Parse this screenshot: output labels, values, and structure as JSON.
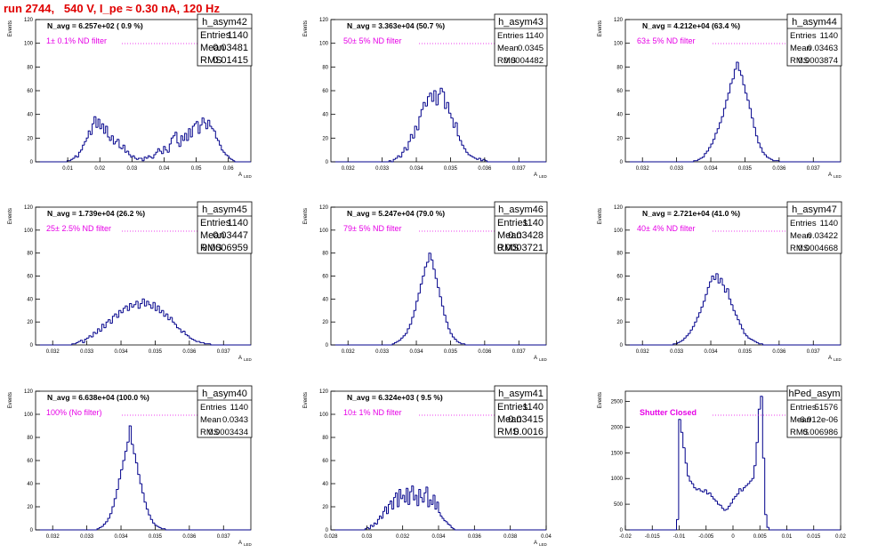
{
  "page_title": "run 2744,   540 V, I_pe ≈ 0.30 nA, 120 Hz",
  "colors": {
    "title": "#e00000",
    "hist_line": "#00008b",
    "filter_label": "#e600e6",
    "axes": "#000000"
  },
  "chart_data": [
    {
      "type": "bar",
      "name": "h_asym42",
      "nav_text": "N_avg = 6.257e+02 ( 0.9 %)",
      "filter_text": "1± 0.1% ND filter",
      "stats": [
        [
          "Entries",
          "1140"
        ],
        [
          "Mean",
          "0.03481"
        ],
        [
          "RMS",
          "0.01415"
        ]
      ],
      "xlabel": "A_{LED}",
      "ylabel": "Events",
      "xlim": [
        0.0,
        0.067
      ],
      "ylim": [
        0,
        120
      ],
      "xticks": [
        0.01,
        0.02,
        0.03,
        0.04,
        0.05,
        0.06
      ],
      "xtick_labels": [
        "0.01",
        "0.02",
        "0.03",
        "0.04",
        "0.05",
        "0.06"
      ],
      "yticks": [
        0,
        20,
        40,
        60,
        80,
        100,
        120
      ],
      "ytick_labels": [
        "0",
        "20",
        "40",
        "60",
        "80",
        "100",
        "120"
      ],
      "bin_low": 0.008,
      "bin_width": 0.0006,
      "values": [
        0,
        0,
        0,
        1,
        1,
        2,
        3,
        5,
        4,
        8,
        10,
        14,
        17,
        20,
        26,
        23,
        32,
        38,
        29,
        36,
        28,
        32,
        24,
        30,
        21,
        18,
        22,
        15,
        17,
        19,
        12,
        11,
        14,
        8,
        9,
        6,
        4,
        5,
        3,
        2,
        3,
        3,
        1,
        4,
        3,
        5,
        4,
        3,
        6,
        8,
        11,
        9,
        7,
        13,
        10,
        8,
        15,
        20,
        22,
        25,
        16,
        13,
        22,
        18,
        24,
        18,
        28,
        21,
        30,
        32,
        34,
        24,
        31,
        37,
        33,
        28,
        35,
        30,
        28,
        26,
        20,
        18,
        14,
        10,
        8,
        6,
        5,
        3,
        2,
        1
      ]
    },
    {
      "type": "bar",
      "name": "h_asym43",
      "nav_text": "N_avg = 3.363e+04 (50.7 %)",
      "filter_text": "50± 5% ND filter",
      "stats": [
        [
          "Entries",
          "1140"
        ],
        [
          "Mean",
          "0.0345"
        ],
        [
          "RMS",
          "0.0004482"
        ]
      ],
      "xlabel": "A_{LED}",
      "ylabel": "Events",
      "xlim": [
        0.0315,
        0.0378
      ],
      "ylim": [
        0,
        120
      ],
      "xticks": [
        0.032,
        0.033,
        0.034,
        0.035,
        0.036,
        0.037
      ],
      "xtick_labels": [
        "0.032",
        "0.033",
        "0.034",
        "0.035",
        "0.036",
        "0.037"
      ],
      "yticks": [
        0,
        20,
        40,
        60,
        80,
        100,
        120
      ],
      "ytick_labels": [
        "0",
        "20",
        "40",
        "60",
        "80",
        "100",
        "120"
      ],
      "bin_low": 0.0332,
      "bin_width": 6.25e-05,
      "values": [
        1,
        0,
        2,
        3,
        5,
        4,
        8,
        12,
        10,
        17,
        23,
        20,
        30,
        27,
        38,
        44,
        50,
        47,
        55,
        58,
        51,
        60,
        48,
        57,
        62,
        59,
        45,
        50,
        41,
        37,
        29,
        33,
        22,
        18,
        14,
        11,
        8,
        6,
        5,
        4,
        3,
        2,
        3,
        1,
        2,
        1
      ]
    },
    {
      "type": "bar",
      "name": "h_asym44",
      "nav_text": "N_avg = 4.212e+04 (63.4 %)",
      "filter_text": "63± 5% ND filter",
      "stats": [
        [
          "Entries",
          "1140"
        ],
        [
          "Mean",
          "0.03463"
        ],
        [
          "RMS",
          "0.0003874"
        ]
      ],
      "xlabel": "A_{LED}",
      "ylabel": "Events",
      "xlim": [
        0.0315,
        0.0378
      ],
      "ylim": [
        0,
        120
      ],
      "xticks": [
        0.032,
        0.033,
        0.034,
        0.035,
        0.036,
        0.037
      ],
      "xtick_labels": [
        "0.032",
        "0.033",
        "0.034",
        "0.035",
        "0.036",
        "0.037"
      ],
      "yticks": [
        0,
        20,
        40,
        60,
        80,
        100,
        120
      ],
      "ytick_labels": [
        "0",
        "20",
        "40",
        "60",
        "80",
        "100",
        "120"
      ],
      "bin_low": 0.0335,
      "bin_width": 6.25e-05,
      "values": [
        1,
        1,
        2,
        3,
        4,
        7,
        9,
        12,
        15,
        19,
        24,
        28,
        33,
        38,
        45,
        52,
        58,
        66,
        70,
        78,
        84,
        77,
        73,
        65,
        58,
        52,
        45,
        37,
        29,
        22,
        16,
        12,
        8,
        6,
        4,
        3,
        2,
        1,
        1,
        1
      ]
    },
    {
      "type": "bar",
      "name": "h_asym45",
      "nav_text": "N_avg = 1.739e+04 (26.2 %)",
      "filter_text": "25± 2.5% ND filter",
      "stats": [
        [
          "Entries",
          "1140"
        ],
        [
          "Mean",
          "0.03447"
        ],
        [
          "RMS",
          "0.0006959"
        ]
      ],
      "xlabel": "A_{LED}",
      "ylabel": "Events",
      "xlim": [
        0.0315,
        0.0378
      ],
      "ylim": [
        0,
        120
      ],
      "xticks": [
        0.032,
        0.033,
        0.034,
        0.035,
        0.036,
        0.037
      ],
      "xtick_labels": [
        "0.032",
        "0.033",
        "0.034",
        "0.035",
        "0.036",
        "0.037"
      ],
      "yticks": [
        0,
        20,
        40,
        60,
        80,
        100,
        120
      ],
      "ytick_labels": [
        "0",
        "20",
        "40",
        "60",
        "80",
        "100",
        "120"
      ],
      "bin_low": 0.0325,
      "bin_width": 6.25e-05,
      "values": [
        0,
        1,
        1,
        2,
        3,
        4,
        2,
        5,
        6,
        8,
        7,
        11,
        10,
        14,
        12,
        18,
        15,
        20,
        22,
        19,
        25,
        27,
        24,
        30,
        28,
        32,
        34,
        30,
        36,
        33,
        35,
        38,
        32,
        36,
        40,
        34,
        38,
        35,
        32,
        37,
        30,
        34,
        28,
        30,
        25,
        27,
        22,
        24,
        20,
        18,
        15,
        14,
        11,
        12,
        9,
        8,
        6,
        5,
        4,
        3,
        3,
        2,
        2,
        1,
        1,
        1
      ]
    },
    {
      "type": "bar",
      "name": "h_asym46",
      "nav_text": "N_avg = 5.247e+04 (79.0 %)",
      "filter_text": "79± 5% ND filter",
      "stats": [
        [
          "Entries",
          "1140"
        ],
        [
          "Mean",
          "0.03428"
        ],
        [
          "RMS",
          "0.0003721"
        ]
      ],
      "xlabel": "A_{LED}",
      "ylabel": "Events",
      "xlim": [
        0.0315,
        0.0378
      ],
      "ylim": [
        0,
        120
      ],
      "xticks": [
        0.032,
        0.033,
        0.034,
        0.035,
        0.036,
        0.037
      ],
      "xtick_labels": [
        "0.032",
        "0.033",
        "0.034",
        "0.035",
        "0.036",
        "0.037"
      ],
      "yticks": [
        0,
        20,
        40,
        60,
        80,
        100,
        120
      ],
      "ytick_labels": [
        "0",
        "20",
        "40",
        "60",
        "80",
        "100",
        "120"
      ],
      "bin_low": 0.0333,
      "bin_width": 6.25e-05,
      "values": [
        1,
        2,
        3,
        4,
        6,
        8,
        10,
        14,
        18,
        24,
        30,
        38,
        45,
        53,
        60,
        68,
        72,
        80,
        74,
        66,
        58,
        50,
        42,
        34,
        26,
        20,
        14,
        10,
        7,
        5,
        3,
        2,
        1,
        1
      ]
    },
    {
      "type": "bar",
      "name": "h_asym47",
      "nav_text": "N_avg = 2.721e+04 (41.0 %)",
      "filter_text": "40± 4% ND filter",
      "stats": [
        [
          "Entries",
          "1140"
        ],
        [
          "Mean",
          "0.03422"
        ],
        [
          "RMS",
          "0.0004668"
        ]
      ],
      "xlabel": "A_{LED}",
      "ylabel": "Events",
      "xlim": [
        0.0315,
        0.0378
      ],
      "ylim": [
        0,
        120
      ],
      "xticks": [
        0.032,
        0.033,
        0.034,
        0.035,
        0.036,
        0.037
      ],
      "xtick_labels": [
        "0.032",
        "0.033",
        "0.034",
        "0.035",
        "0.036",
        "0.037"
      ],
      "yticks": [
        0,
        20,
        40,
        60,
        80,
        100,
        120
      ],
      "ytick_labels": [
        "0",
        "20",
        "40",
        "60",
        "80",
        "100",
        "120"
      ],
      "bin_low": 0.0329,
      "bin_width": 6.25e-05,
      "values": [
        1,
        1,
        2,
        3,
        4,
        6,
        8,
        10,
        13,
        16,
        20,
        24,
        28,
        33,
        38,
        44,
        50,
        55,
        60,
        57,
        62,
        54,
        58,
        52,
        46,
        49,
        40,
        35,
        30,
        26,
        22,
        18,
        14,
        10,
        8,
        6,
        5,
        4,
        3,
        2,
        1,
        1
      ]
    },
    {
      "type": "bar",
      "name": "h_asym40",
      "nav_text": "N_avg = 6.638e+04 (100.0 %)",
      "filter_text": "100% (No filter)",
      "stats": [
        [
          "Entries",
          "1140"
        ],
        [
          "Mean",
          "0.0343"
        ],
        [
          "RMS",
          "0.0003434"
        ]
      ],
      "xlabel": "A_{LED}",
      "ylabel": "Events",
      "xlim": [
        0.0315,
        0.0378
      ],
      "ylim": [
        0,
        120
      ],
      "xticks": [
        0.032,
        0.033,
        0.034,
        0.035,
        0.036,
        0.037
      ],
      "xtick_labels": [
        "0.032",
        "0.033",
        "0.034",
        "0.035",
        "0.036",
        "0.037"
      ],
      "yticks": [
        0,
        20,
        40,
        60,
        80,
        100,
        120
      ],
      "ytick_labels": [
        "0",
        "20",
        "40",
        "60",
        "80",
        "100",
        "120"
      ],
      "bin_low": 0.0333,
      "bin_width": 6.25e-05,
      "values": [
        1,
        2,
        3,
        5,
        7,
        10,
        14,
        20,
        27,
        35,
        44,
        52,
        60,
        68,
        76,
        90,
        74,
        66,
        58,
        48,
        40,
        32,
        24,
        18,
        13,
        9,
        6,
        4,
        3,
        2,
        1,
        1
      ]
    },
    {
      "type": "bar",
      "name": "h_asym41",
      "nav_text": "N_avg = 6.324e+03 ( 9.5 %)",
      "filter_text": "10± 1% ND filter",
      "stats": [
        [
          "Entries",
          "1140"
        ],
        [
          "Mean",
          "0.03415"
        ],
        [
          "RMS",
          "0.0016"
        ]
      ],
      "xlabel": "A_{LED}",
      "ylabel": "Events",
      "xlim": [
        0.028,
        0.04
      ],
      "ylim": [
        0,
        120
      ],
      "xticks": [
        0.028,
        0.03,
        0.032,
        0.034,
        0.036,
        0.038,
        0.04
      ],
      "xtick_labels": [
        "0.028",
        "0.03",
        "0.032",
        "0.034",
        "0.036",
        "0.038",
        "0.04"
      ],
      "yticks": [
        0,
        20,
        40,
        60,
        80,
        100,
        120
      ],
      "ytick_labels": [
        "0",
        "20",
        "40",
        "60",
        "80",
        "100",
        "120"
      ],
      "bin_low": 0.0298,
      "bin_width": 0.0001,
      "values": [
        0,
        1,
        2,
        1,
        4,
        3,
        6,
        5,
        9,
        12,
        10,
        16,
        20,
        14,
        22,
        25,
        18,
        28,
        32,
        20,
        35,
        27,
        30,
        24,
        36,
        22,
        33,
        38,
        26,
        30,
        21,
        35,
        28,
        24,
        32,
        37,
        20,
        26,
        22,
        30,
        18,
        24,
        15,
        12,
        10,
        8,
        7,
        5,
        4,
        2,
        1
      ]
    },
    {
      "type": "bar",
      "name": "hPed_asym",
      "nav_text": "",
      "filter_text": "Shutter Closed",
      "stats": [
        [
          "Entries",
          "51576"
        ],
        [
          "Mean",
          "-6.912e-06"
        ],
        [
          "RMS",
          "0.006986"
        ]
      ],
      "xlabel": "",
      "ylabel": "Events",
      "xlim": [
        -0.02,
        0.02
      ],
      "ylim": [
        0,
        2700
      ],
      "xticks": [
        -0.02,
        -0.015,
        -0.01,
        -0.005,
        0,
        0.005,
        0.01,
        0.015,
        0.02
      ],
      "xtick_labels": [
        "-0.02",
        "-0.015",
        "-0.01",
        "-0.005",
        "0",
        "0.005",
        "0.01",
        "0.015",
        "0.02"
      ],
      "yticks": [
        0,
        500,
        1000,
        1500,
        2000,
        2500
      ],
      "ytick_labels": [
        "0",
        "500",
        "1000",
        "1500",
        "2000",
        "2500"
      ],
      "bin_low": -0.0105,
      "bin_width": 0.0004,
      "values": [
        200,
        2150,
        1900,
        1600,
        1300,
        1050,
        950,
        900,
        820,
        780,
        800,
        760,
        740,
        780,
        700,
        720,
        650,
        600,
        560,
        500,
        480,
        420,
        380,
        400,
        460,
        520,
        600,
        650,
        700,
        800,
        760,
        820,
        860,
        900,
        950,
        1000,
        1250,
        1700,
        2350,
        2600,
        1400,
        300,
        50
      ]
    }
  ]
}
